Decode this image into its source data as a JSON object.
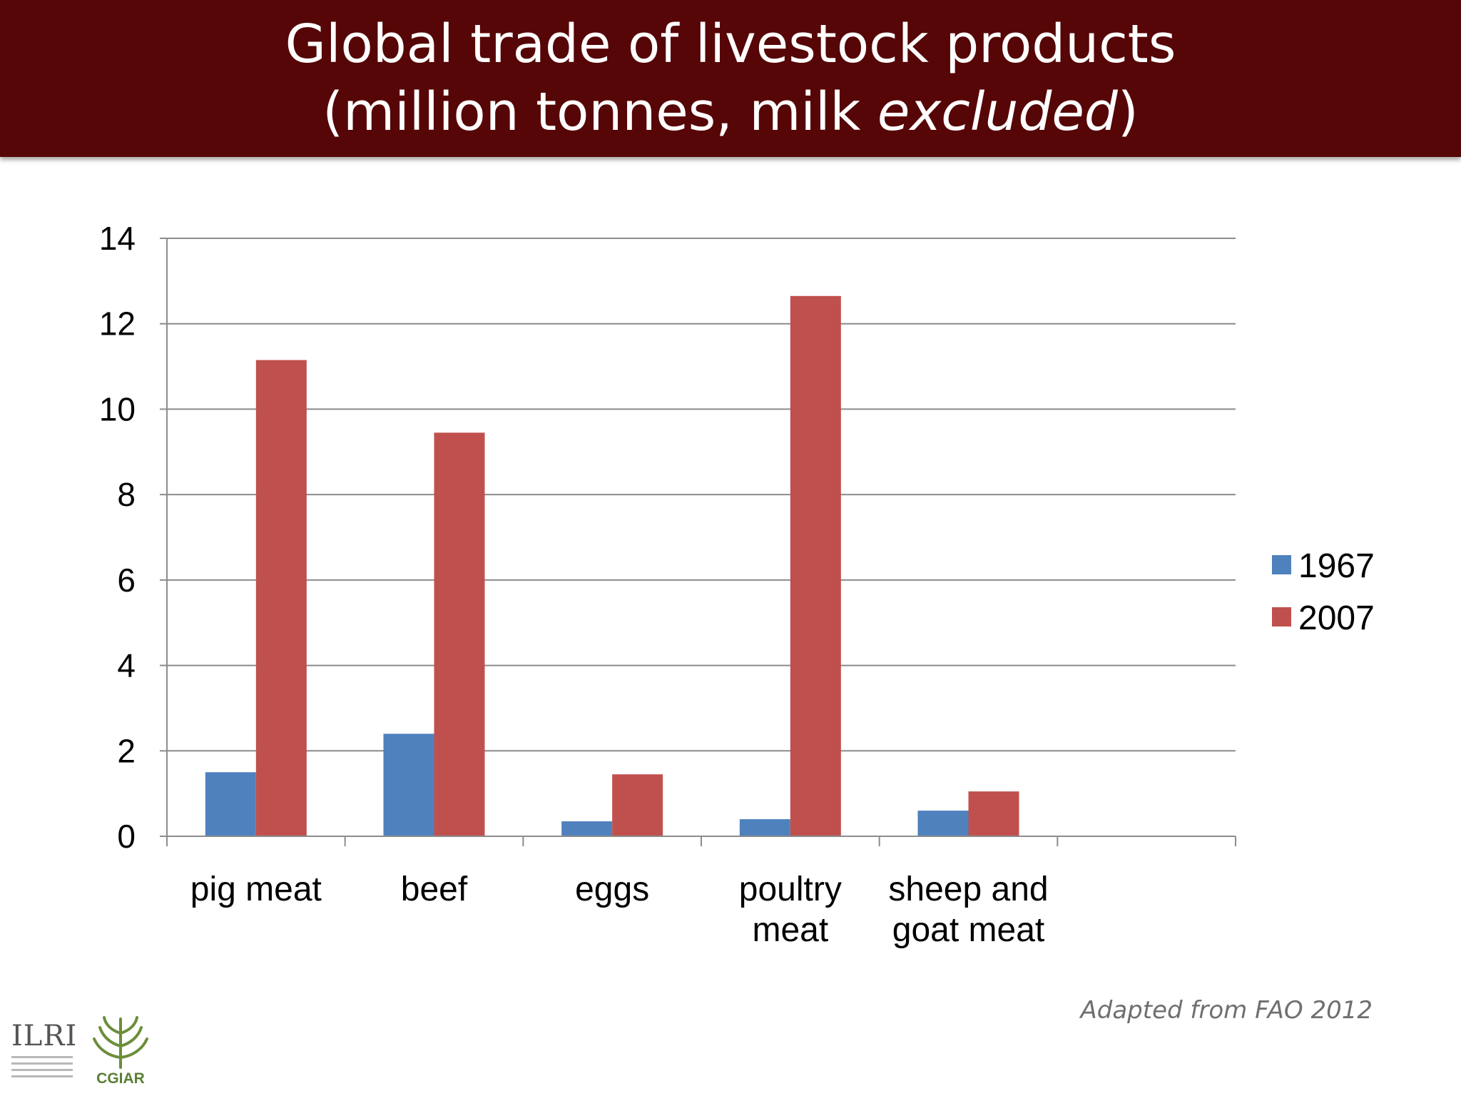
{
  "title": {
    "line1": "Global trade of livestock products",
    "line2_prefix": "(million tonnes, milk ",
    "line2_emphasis": "excluded",
    "line2_suffix": ")"
  },
  "caption": "Adapted from FAO 2012",
  "logos": {
    "ilri": "ILRI",
    "cgiar": "CGIAR"
  },
  "colors": {
    "banner": "#560606",
    "series_1967": "#4f81bd",
    "series_2007": "#c0504d",
    "grid": "#8c8c8c"
  },
  "chart_data": {
    "type": "bar",
    "title": "Global trade of livestock products (million tonnes, milk excluded)",
    "xlabel": "",
    "ylabel": "",
    "categories": [
      [
        "pig meat"
      ],
      [
        "beef"
      ],
      [
        "eggs"
      ],
      [
        "poultry",
        "meat"
      ],
      [
        "sheep and",
        "goat meat"
      ],
      []
    ],
    "series": [
      {
        "name": "1967",
        "color": "#4f81bd",
        "values": [
          1.5,
          2.4,
          0.35,
          0.4,
          0.6,
          null
        ]
      },
      {
        "name": "2007",
        "color": "#c0504d",
        "values": [
          11.15,
          9.45,
          1.45,
          12.65,
          1.05,
          null
        ]
      }
    ],
    "ylim": [
      0,
      14
    ],
    "yticks": [
      0,
      2,
      4,
      6,
      8,
      10,
      12,
      14
    ],
    "grid": true,
    "legend": "right"
  }
}
